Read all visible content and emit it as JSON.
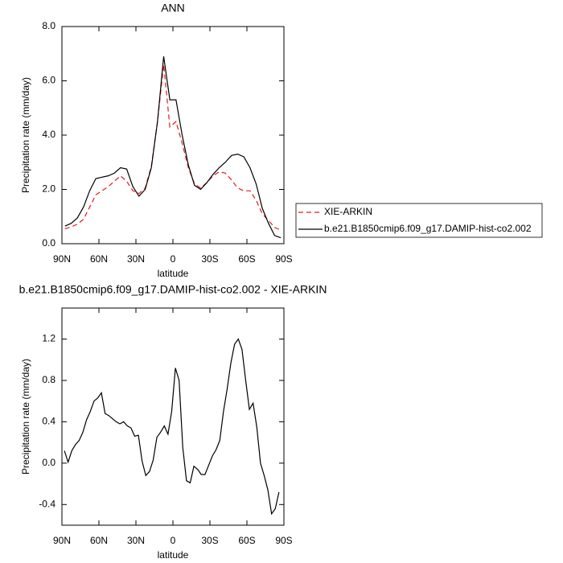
{
  "chart_data": [
    {
      "type": "line",
      "title": "ANN",
      "xlabel": "latitude",
      "ylabel": "Precipitation rate (mm/day)",
      "xlim": [
        90,
        -90
      ],
      "xticks": [
        {
          "value": 90,
          "label": "90N"
        },
        {
          "value": 60,
          "label": "60N"
        },
        {
          "value": 30,
          "label": "30N"
        },
        0,
        {
          "value": -30,
          "label": "30S"
        },
        {
          "value": -60,
          "label": "60S"
        },
        {
          "value": -90,
          "label": "90S"
        }
      ],
      "ylim": [
        0,
        8
      ],
      "yticks": [
        {
          "value": 0,
          "label": "0.0"
        },
        {
          "value": 2,
          "label": "2.0"
        },
        {
          "value": 4,
          "label": "4.0"
        },
        {
          "value": 6,
          "label": "6.0"
        },
        {
          "value": 8,
          "label": "8.0"
        }
      ],
      "legend": "right",
      "x": [
        87.5,
        82.5,
        77.5,
        72.5,
        67.5,
        62.5,
        57.5,
        52.5,
        47.5,
        42.5,
        37.5,
        32.5,
        27.5,
        22.5,
        17.5,
        12.5,
        7.5,
        2.5,
        -2.5,
        -7.5,
        -12.5,
        -17.5,
        -22.5,
        -27.5,
        -32.5,
        -37.5,
        -42.5,
        -47.5,
        -52.5,
        -57.5,
        -62.5,
        -67.5,
        -72.5,
        -77.5,
        -82.5,
        -87.5
      ],
      "series": [
        {
          "name": "XIE-ARKIN",
          "color": "#e31a1c",
          "dashed": true,
          "values": [
            0.55,
            0.62,
            0.72,
            0.9,
            1.35,
            1.8,
            1.95,
            2.1,
            2.3,
            2.5,
            2.3,
            1.95,
            1.85,
            2.05,
            2.85,
            4.5,
            6.6,
            4.3,
            4.5,
            3.7,
            2.8,
            2.2,
            2.05,
            2.25,
            2.5,
            2.65,
            2.6,
            2.35,
            2.05,
            1.95,
            1.95,
            1.6,
            1.1,
            0.85,
            0.6,
            0.5
          ]
        },
        {
          "name": "b.e21.B1850cmip6.f09_g17.DAMIP-hist-co2.002",
          "color": "#000000",
          "dashed": false,
          "values": [
            0.65,
            0.75,
            0.95,
            1.35,
            1.95,
            2.4,
            2.45,
            2.5,
            2.6,
            2.8,
            2.75,
            2.1,
            1.75,
            2.0,
            2.8,
            4.5,
            6.9,
            5.3,
            5.3,
            4.0,
            2.9,
            2.15,
            2.0,
            2.25,
            2.55,
            2.8,
            3.0,
            3.25,
            3.3,
            3.2,
            2.8,
            2.2,
            1.3,
            0.75,
            0.3,
            0.22
          ]
        }
      ]
    },
    {
      "type": "line",
      "title": "b.e21.B1850cmip6.f09_g17.DAMIP-hist-co2.002 - XIE-ARKIN",
      "xlabel": "latitude",
      "ylabel": "Precipitation rate (mm/day)",
      "xlim": [
        90,
        -90
      ],
      "xticks": [
        {
          "value": 90,
          "label": "90N"
        },
        {
          "value": 60,
          "label": "60N"
        },
        {
          "value": 30,
          "label": "30N"
        },
        0,
        {
          "value": -30,
          "label": "30S"
        },
        {
          "value": -60,
          "label": "60S"
        },
        {
          "value": -90,
          "label": "90S"
        }
      ],
      "ylim": [
        -0.6,
        1.5
      ],
      "yticks": [
        {
          "value": -0.4,
          "label": "-0.4"
        },
        {
          "value": 0,
          "label": "0.0"
        },
        {
          "value": 0.4,
          "label": "0.4"
        },
        {
          "value": 0.8,
          "label": "0.8"
        },
        {
          "value": 1.2,
          "label": "1.2"
        }
      ],
      "x": [
        88,
        85,
        82,
        79,
        76,
        73,
        70,
        67,
        64,
        61,
        58,
        55,
        52,
        49,
        46,
        43,
        40,
        37,
        34,
        31,
        28,
        25,
        22,
        19,
        16,
        13,
        10,
        7,
        4,
        1,
        -2,
        -5,
        -8,
        -11,
        -14,
        -17,
        -20,
        -23,
        -26,
        -29,
        -32,
        -35,
        -38,
        -41,
        -44,
        -47,
        -50,
        -53,
        -56,
        -59,
        -62,
        -65,
        -68,
        -71,
        -74,
        -77,
        -80,
        -83,
        -86
      ],
      "series": [
        {
          "color": "#000000",
          "dashed": false,
          "values": [
            0.12,
            0.01,
            0.12,
            0.18,
            0.22,
            0.3,
            0.42,
            0.5,
            0.6,
            0.63,
            0.68,
            0.48,
            0.46,
            0.43,
            0.4,
            0.38,
            0.4,
            0.36,
            0.34,
            0.26,
            0.27,
            0.02,
            -0.12,
            -0.08,
            0.03,
            0.25,
            0.3,
            0.36,
            0.28,
            0.5,
            0.92,
            0.8,
            0.15,
            -0.17,
            -0.19,
            -0.03,
            -0.06,
            -0.11,
            -0.11,
            -0.02,
            0.07,
            0.13,
            0.22,
            0.5,
            0.72,
            0.97,
            1.15,
            1.2,
            1.1,
            0.8,
            0.52,
            0.58,
            0.35,
            0.0,
            -0.12,
            -0.26,
            -0.49,
            -0.44,
            -0.28
          ]
        }
      ]
    }
  ]
}
